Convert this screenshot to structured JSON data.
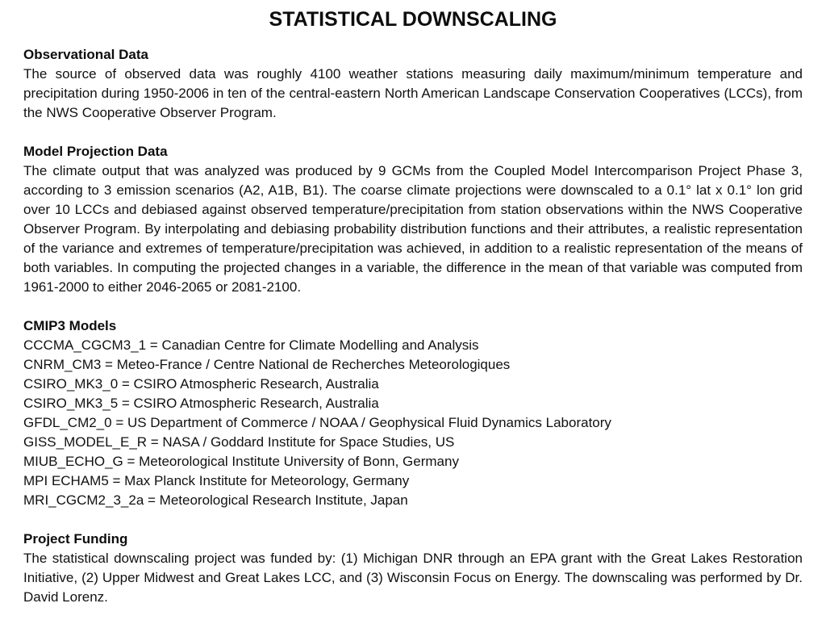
{
  "slide": {
    "title": "STATISTICAL DOWNSCALING",
    "colors": {
      "background": "#ffffff",
      "text": "#111111"
    },
    "sections": [
      {
        "heading": "Observational Data",
        "body": "The source of observed data was roughly 4100 weather stations measuring daily maximum/minimum temperature and precipitation during 1950-2006 in ten of the central-eastern North American Landscape Conservation Cooperatives (LCCs), from the NWS Cooperative Observer Program."
      },
      {
        "heading": "Model Projection Data",
        "body": "The climate output that was analyzed was produced by 9 GCMs from the Coupled Model Intercomparison Project Phase 3, according to 3 emission scenarios (A2, A1B, B1).  The coarse climate projections were downscaled to a 0.1° lat x 0.1° lon grid over 10 LCCs and debiased against observed temperature/precipitation from station observations within the NWS Cooperative Observer Program.  By interpolating and debiasing probability distribution functions and their attributes, a realistic representation of the variance and extremes of temperature/precipitation was achieved, in addition to a realistic representation of the means of both variables.  In computing the projected changes in a variable, the difference in the mean of that variable was computed from 1961-2000 to either 2046-2065 or 2081-2100."
      },
      {
        "heading": "CMIP3 Models",
        "models": [
          "CCCMA_CGCM3_1 = Canadian Centre for Climate Modelling and Analysis",
          "CNRM_CM3 = Meteo-France / Centre National de Recherches Meteorologiques",
          "CSIRO_MK3_0 = CSIRO Atmospheric Research, Australia",
          "CSIRO_MK3_5 = CSIRO Atmospheric Research, Australia",
          "GFDL_CM2_0 = US Department of Commerce / NOAA / Geophysical Fluid Dynamics Laboratory",
          "GISS_MODEL_E_R = NASA / Goddard Institute for Space Studies, US",
          "MIUB_ECHO_G = Meteorological Institute University of Bonn, Germany",
          "MPI ECHAM5 = Max Planck Institute for Meteorology, Germany",
          "MRI_CGCM2_3_2a = Meteorological Research Institute, Japan"
        ]
      },
      {
        "heading": "Project Funding",
        "body": "The statistical downscaling project was funded by: (1) Michigan DNR through an EPA grant with the Great Lakes Restoration Initiative, (2) Upper Midwest and Great Lakes LCC, and (3) Wisconsin Focus on Energy.  The downscaling was performed by Dr. David Lorenz."
      }
    ]
  }
}
